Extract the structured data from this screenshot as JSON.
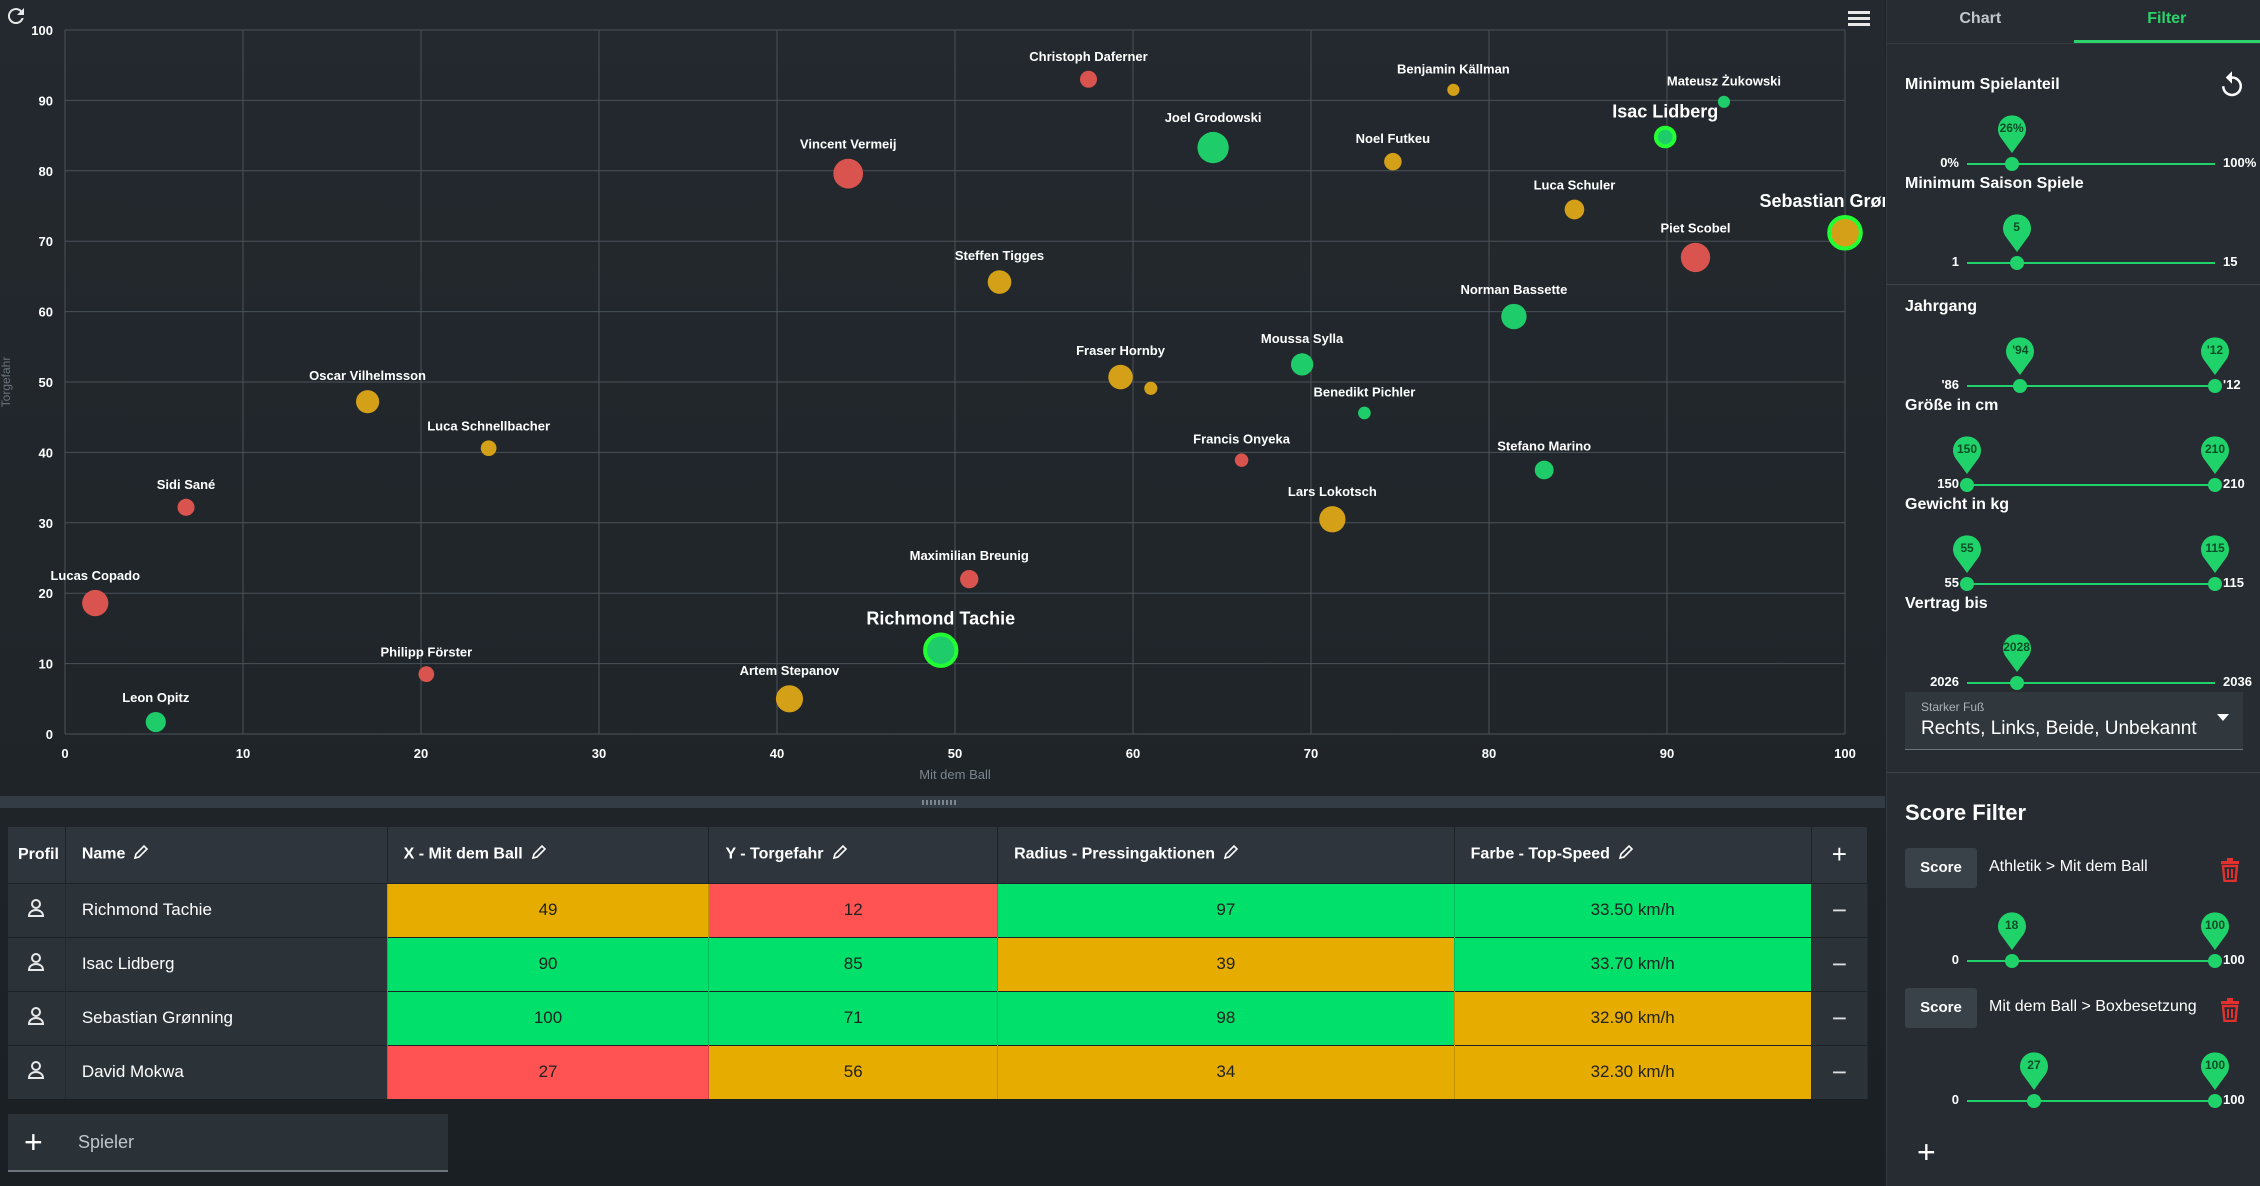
{
  "chart_data": {
    "type": "scatter",
    "xlabel": "Mit dem Ball",
    "ylabel": "Torgefahr",
    "xlim": [
      0,
      100
    ],
    "ylim": [
      0,
      100
    ],
    "xticks": [
      "0",
      "10",
      "20",
      "30",
      "40",
      "50",
      "60",
      "70",
      "80",
      "90",
      "100"
    ],
    "yticks": [
      "0",
      "10",
      "20",
      "30",
      "40",
      "50",
      "60",
      "70",
      "80",
      "90",
      "100"
    ],
    "grid": true,
    "points": [
      {
        "name": "Christoph Daferner",
        "x": 57.5,
        "y": 93,
        "size": 32,
        "color": "#d9534f"
      },
      {
        "name": "Benjamin Källman",
        "x": 78,
        "y": 91.5,
        "size": 10,
        "color": "#d4a017"
      },
      {
        "name": "Mateusz Żukowski",
        "x": 93.2,
        "y": 89.8,
        "size": 10,
        "color": "#1fcc6a"
      },
      {
        "name": "Isac Lidberg",
        "x": 89.9,
        "y": 84.8,
        "size": 39,
        "color": "#1fcc6a",
        "highlight": true
      },
      {
        "name": "Joel Grodowski",
        "x": 64.5,
        "y": 83.3,
        "size": 97,
        "color": "#1fcc6a"
      },
      {
        "name": "Noel Futkeu",
        "x": 74.6,
        "y": 81.3,
        "size": 34,
        "color": "#d4a017"
      },
      {
        "name": "Vincent Vermeij",
        "x": 44,
        "y": 79.6,
        "size": 90,
        "color": "#d9534f"
      },
      {
        "name": "Luca Schuler",
        "x": 84.8,
        "y": 74.5,
        "size": 44,
        "color": "#d4a017"
      },
      {
        "name": "Sebastian Grønning",
        "x": 100,
        "y": 71.2,
        "size": 98,
        "color": "#d4a017",
        "highlight": true
      },
      {
        "name": "Piet Scobel",
        "x": 91.6,
        "y": 67.7,
        "size": 88,
        "color": "#d9534f"
      },
      {
        "name": "Steffen Tigges",
        "x": 52.5,
        "y": 64.2,
        "size": 62,
        "color": "#d4a017"
      },
      {
        "name": "Norman Bassette",
        "x": 81.4,
        "y": 59.3,
        "size": 70,
        "color": "#1fcc6a"
      },
      {
        "name": "Moussa Sylla",
        "x": 69.5,
        "y": 52.5,
        "size": 56,
        "color": "#1fcc6a"
      },
      {
        "name": "Fraser Hornby",
        "x": 59.3,
        "y": 50.7,
        "size": 66,
        "color": "#d4a017"
      },
      {
        "name": "",
        "x": 61,
        "y": 49.1,
        "size": 14,
        "color": "#d4a017"
      },
      {
        "name": "Oscar Vilhelmsson",
        "x": 17,
        "y": 47.2,
        "size": 60,
        "color": "#d4a017"
      },
      {
        "name": "Benedikt Pichler",
        "x": 73,
        "y": 45.6,
        "size": 12,
        "color": "#1fcc6a"
      },
      {
        "name": "Luca Schnellbacher",
        "x": 23.8,
        "y": 40.6,
        "size": 26,
        "color": "#d4a017"
      },
      {
        "name": "Francis Onyeka",
        "x": 66.1,
        "y": 38.9,
        "size": 16,
        "color": "#d9534f"
      },
      {
        "name": "Stefano Marino",
        "x": 83.1,
        "y": 37.5,
        "size": 40,
        "color": "#1fcc6a"
      },
      {
        "name": "Sidi Sané",
        "x": 6.8,
        "y": 32.2,
        "size": 32,
        "color": "#d9534f"
      },
      {
        "name": "Lars Lokotsch",
        "x": 71.2,
        "y": 30.5,
        "size": 74,
        "color": "#d4a017"
      },
      {
        "name": "Maximilian Breunig",
        "x": 50.8,
        "y": 22,
        "size": 38,
        "color": "#d9534f"
      },
      {
        "name": "Lucas Copado",
        "x": 1.7,
        "y": 18.6,
        "size": 74,
        "color": "#d9534f"
      },
      {
        "name": "Richmond Tachie",
        "x": 49.2,
        "y": 11.9,
        "size": 97,
        "color": "#1fcc6a",
        "highlight": true
      },
      {
        "name": "Philipp Förster",
        "x": 20.3,
        "y": 8.5,
        "size": 26,
        "color": "#d9534f"
      },
      {
        "name": "Artem Stepanov",
        "x": 40.7,
        "y": 5,
        "size": 78,
        "color": "#d4a017"
      },
      {
        "name": "Leon Opitz",
        "x": 5.1,
        "y": 1.7,
        "size": 46,
        "color": "#1fcc6a"
      }
    ]
  },
  "table": {
    "headers": {
      "profile": "Profil",
      "name": "Name",
      "x": "X - Mit dem Ball",
      "y": "Y - Torgefahr",
      "radius": "Radius - Pressingaktionen",
      "color": "Farbe - Top-Speed"
    },
    "add_column": "+",
    "rows": [
      {
        "name": "Richmond Tachie",
        "x": "49",
        "xc": "yellow",
        "y": "12",
        "yc": "red",
        "r": "97",
        "rc": "green",
        "c": "33.50 km/h",
        "cc": "green"
      },
      {
        "name": "Isac Lidberg",
        "x": "90",
        "xc": "green",
        "y": "85",
        "yc": "green",
        "r": "39",
        "rc": "yellow",
        "c": "33.70 km/h",
        "cc": "green"
      },
      {
        "name": "Sebastian Grønning",
        "x": "100",
        "xc": "green",
        "y": "71",
        "yc": "green",
        "r": "98",
        "rc": "green",
        "c": "32.90 km/h",
        "cc": "yellow"
      },
      {
        "name": "David Mokwa",
        "x": "27",
        "xc": "red",
        "y": "56",
        "yc": "yellow",
        "r": "34",
        "rc": "yellow",
        "c": "32.30 km/h",
        "cc": "yellow"
      }
    ],
    "remove_label": "−",
    "add_player_label": "Spieler"
  },
  "colors": {
    "green": "#00e06a",
    "red": "#ff5252",
    "yellow": "#e6ad00",
    "accent": "#2bd46b"
  },
  "panel": {
    "tabs": [
      "Chart",
      "Filter"
    ],
    "active_tab": "Filter",
    "filters": [
      {
        "label": "Minimum Spielanteil",
        "min": "0%",
        "max": "100%",
        "thumbs": [
          {
            "label": "26%",
            "pos": 0.18
          }
        ]
      },
      {
        "label": "Minimum Saison Spiele",
        "min": "1",
        "max": "15",
        "thumbs": [
          {
            "label": "5",
            "pos": 0.2
          }
        ]
      },
      {
        "label": "Jahrgang",
        "min": "'86",
        "max": "'12",
        "thumbs": [
          {
            "label": "'94",
            "pos": 0.215
          },
          {
            "label": "'12",
            "pos": 1
          }
        ]
      },
      {
        "label": "Größe in cm",
        "min": "150",
        "max": "210",
        "thumbs": [
          {
            "label": "150",
            "pos": 0
          },
          {
            "label": "210",
            "pos": 1
          }
        ]
      },
      {
        "label": "Gewicht in kg",
        "min": "55",
        "max": "115",
        "thumbs": [
          {
            "label": "55",
            "pos": 0
          },
          {
            "label": "115",
            "pos": 1
          }
        ]
      },
      {
        "label": "Vertrag bis",
        "min": "2026",
        "max": "2036",
        "thumbs": [
          {
            "label": "2028",
            "pos": 0.2
          }
        ]
      }
    ],
    "foot": {
      "label": "Starker Fuß",
      "value": "Rechts, Links, Beide, Unbekannt"
    },
    "score_title": "Score Filter",
    "scores": [
      {
        "chip": "Score",
        "name": "Athletik > Mit dem Ball",
        "min": "0",
        "max": "100",
        "thumbs": [
          {
            "label": "18",
            "pos": 0.18
          },
          {
            "label": "100",
            "pos": 1
          }
        ]
      },
      {
        "chip": "Score",
        "name": "Mit dem Ball > Boxbesetzung",
        "min": "0",
        "max": "100",
        "thumbs": [
          {
            "label": "27",
            "pos": 0.27
          },
          {
            "label": "100",
            "pos": 1
          }
        ]
      }
    ],
    "add_score": "+"
  }
}
